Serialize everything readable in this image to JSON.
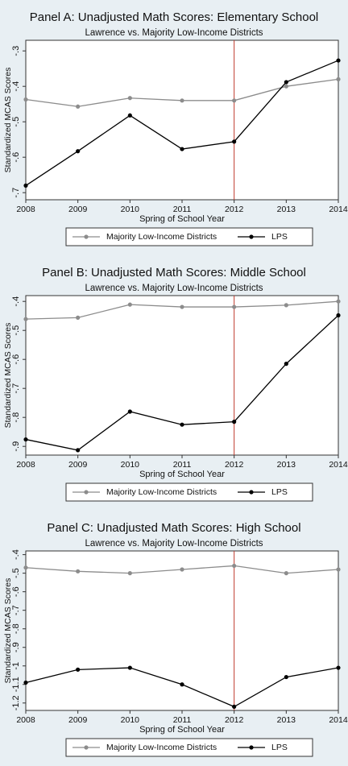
{
  "chart_data": [
    {
      "type": "line",
      "title": "Panel A: Unadjusted Math Scores: Elementary School",
      "subtitle": "Lawrence vs. Majority Low-Income Districts",
      "y_label": "Standardized MCAS Scores",
      "x_label": "Spring of School Year",
      "x": [
        2008,
        2009,
        2010,
        2011,
        2012,
        2013,
        2014
      ],
      "xlim": [
        2008,
        2014
      ],
      "xticks": [
        2008,
        2009,
        2010,
        2011,
        2012,
        2013,
        2014
      ],
      "ylim": [
        -0.72,
        -0.27
      ],
      "yticks": [
        {
          "value": -0.7,
          "label": "-.7"
        },
        {
          "value": -0.6,
          "label": "-.6"
        },
        {
          "value": -0.5,
          "label": "-.5"
        },
        {
          "value": -0.4,
          "label": "-.4"
        },
        {
          "value": -0.3,
          "label": "-.3"
        }
      ],
      "reference_x": 2012,
      "reference_color": "#c0392b",
      "legend": "bottom",
      "series": [
        {
          "name": "Majority Low-Income Districts",
          "color": "#8c8c8c",
          "values": [
            -0.437,
            -0.457,
            -0.433,
            -0.44,
            -0.44,
            -0.4,
            -0.38
          ]
        },
        {
          "name": "LPS",
          "color": "#000000",
          "values": [
            -0.68,
            -0.583,
            -0.482,
            -0.577,
            -0.556,
            -0.388,
            -0.327
          ]
        }
      ]
    },
    {
      "type": "line",
      "title": "Panel B: Unadjusted Math Scores: Middle School",
      "subtitle": "Lawrence vs. Majority Low-Income Districts",
      "y_label": "Standardized MCAS Scores",
      "x_label": "Spring of School Year",
      "x": [
        2008,
        2009,
        2010,
        2011,
        2012,
        2013,
        2014
      ],
      "xlim": [
        2008,
        2014
      ],
      "xticks": [
        2008,
        2009,
        2010,
        2011,
        2012,
        2013,
        2014
      ],
      "ylim": [
        -0.93,
        -0.38
      ],
      "yticks": [
        {
          "value": -0.9,
          "label": "-.9"
        },
        {
          "value": -0.8,
          "label": "-.8"
        },
        {
          "value": -0.7,
          "label": "-.7"
        },
        {
          "value": -0.6,
          "label": "-.6"
        },
        {
          "value": -0.5,
          "label": "-.5"
        },
        {
          "value": -0.4,
          "label": "-.4"
        }
      ],
      "reference_x": 2012,
      "reference_color": "#c0392b",
      "legend": "bottom",
      "series": [
        {
          "name": "Majority Low-Income Districts",
          "color": "#8c8c8c",
          "values": [
            -0.461,
            -0.456,
            -0.411,
            -0.419,
            -0.419,
            -0.413,
            -0.4
          ]
        },
        {
          "name": "LPS",
          "color": "#000000",
          "values": [
            -0.876,
            -0.913,
            -0.78,
            -0.825,
            -0.815,
            -0.615,
            -0.448
          ]
        }
      ]
    },
    {
      "type": "line",
      "title": "Panel C: Unadjusted Math Scores: High School",
      "subtitle": "Lawrence vs. Majority Low-Income Districts",
      "y_label": "Standardized MCAS Scores",
      "x_label": "Spring of School Year",
      "x": [
        2008,
        2009,
        2010,
        2011,
        2012,
        2013,
        2014
      ],
      "xlim": [
        2008,
        2014
      ],
      "xticks": [
        2008,
        2009,
        2010,
        2011,
        2012,
        2013,
        2014
      ],
      "ylim": [
        -1.24,
        -0.38
      ],
      "yticks": [
        {
          "value": -1.2,
          "label": "-1.2"
        },
        {
          "value": -1.1,
          "label": "-1.1"
        },
        -1,
        {
          "value": -0.9,
          "label": "-.9"
        },
        {
          "value": -0.8,
          "label": "-.8"
        },
        {
          "value": -0.7,
          "label": "-.7"
        },
        {
          "value": -0.6,
          "label": "-.6"
        },
        {
          "value": -0.5,
          "label": "-.5"
        },
        {
          "value": -0.4,
          "label": "-.4"
        }
      ],
      "reference_x": 2012,
      "reference_color": "#c0392b",
      "legend": "bottom",
      "series": [
        {
          "name": "Majority Low-Income Districts",
          "color": "#8c8c8c",
          "values": [
            -0.47,
            -0.49,
            -0.5,
            -0.48,
            -0.46,
            -0.5,
            -0.48
          ]
        },
        {
          "name": "LPS",
          "color": "#000000",
          "values": [
            -1.09,
            -1.02,
            -1.01,
            -1.1,
            -1.22,
            -1.06,
            -1.01
          ]
        }
      ]
    }
  ]
}
